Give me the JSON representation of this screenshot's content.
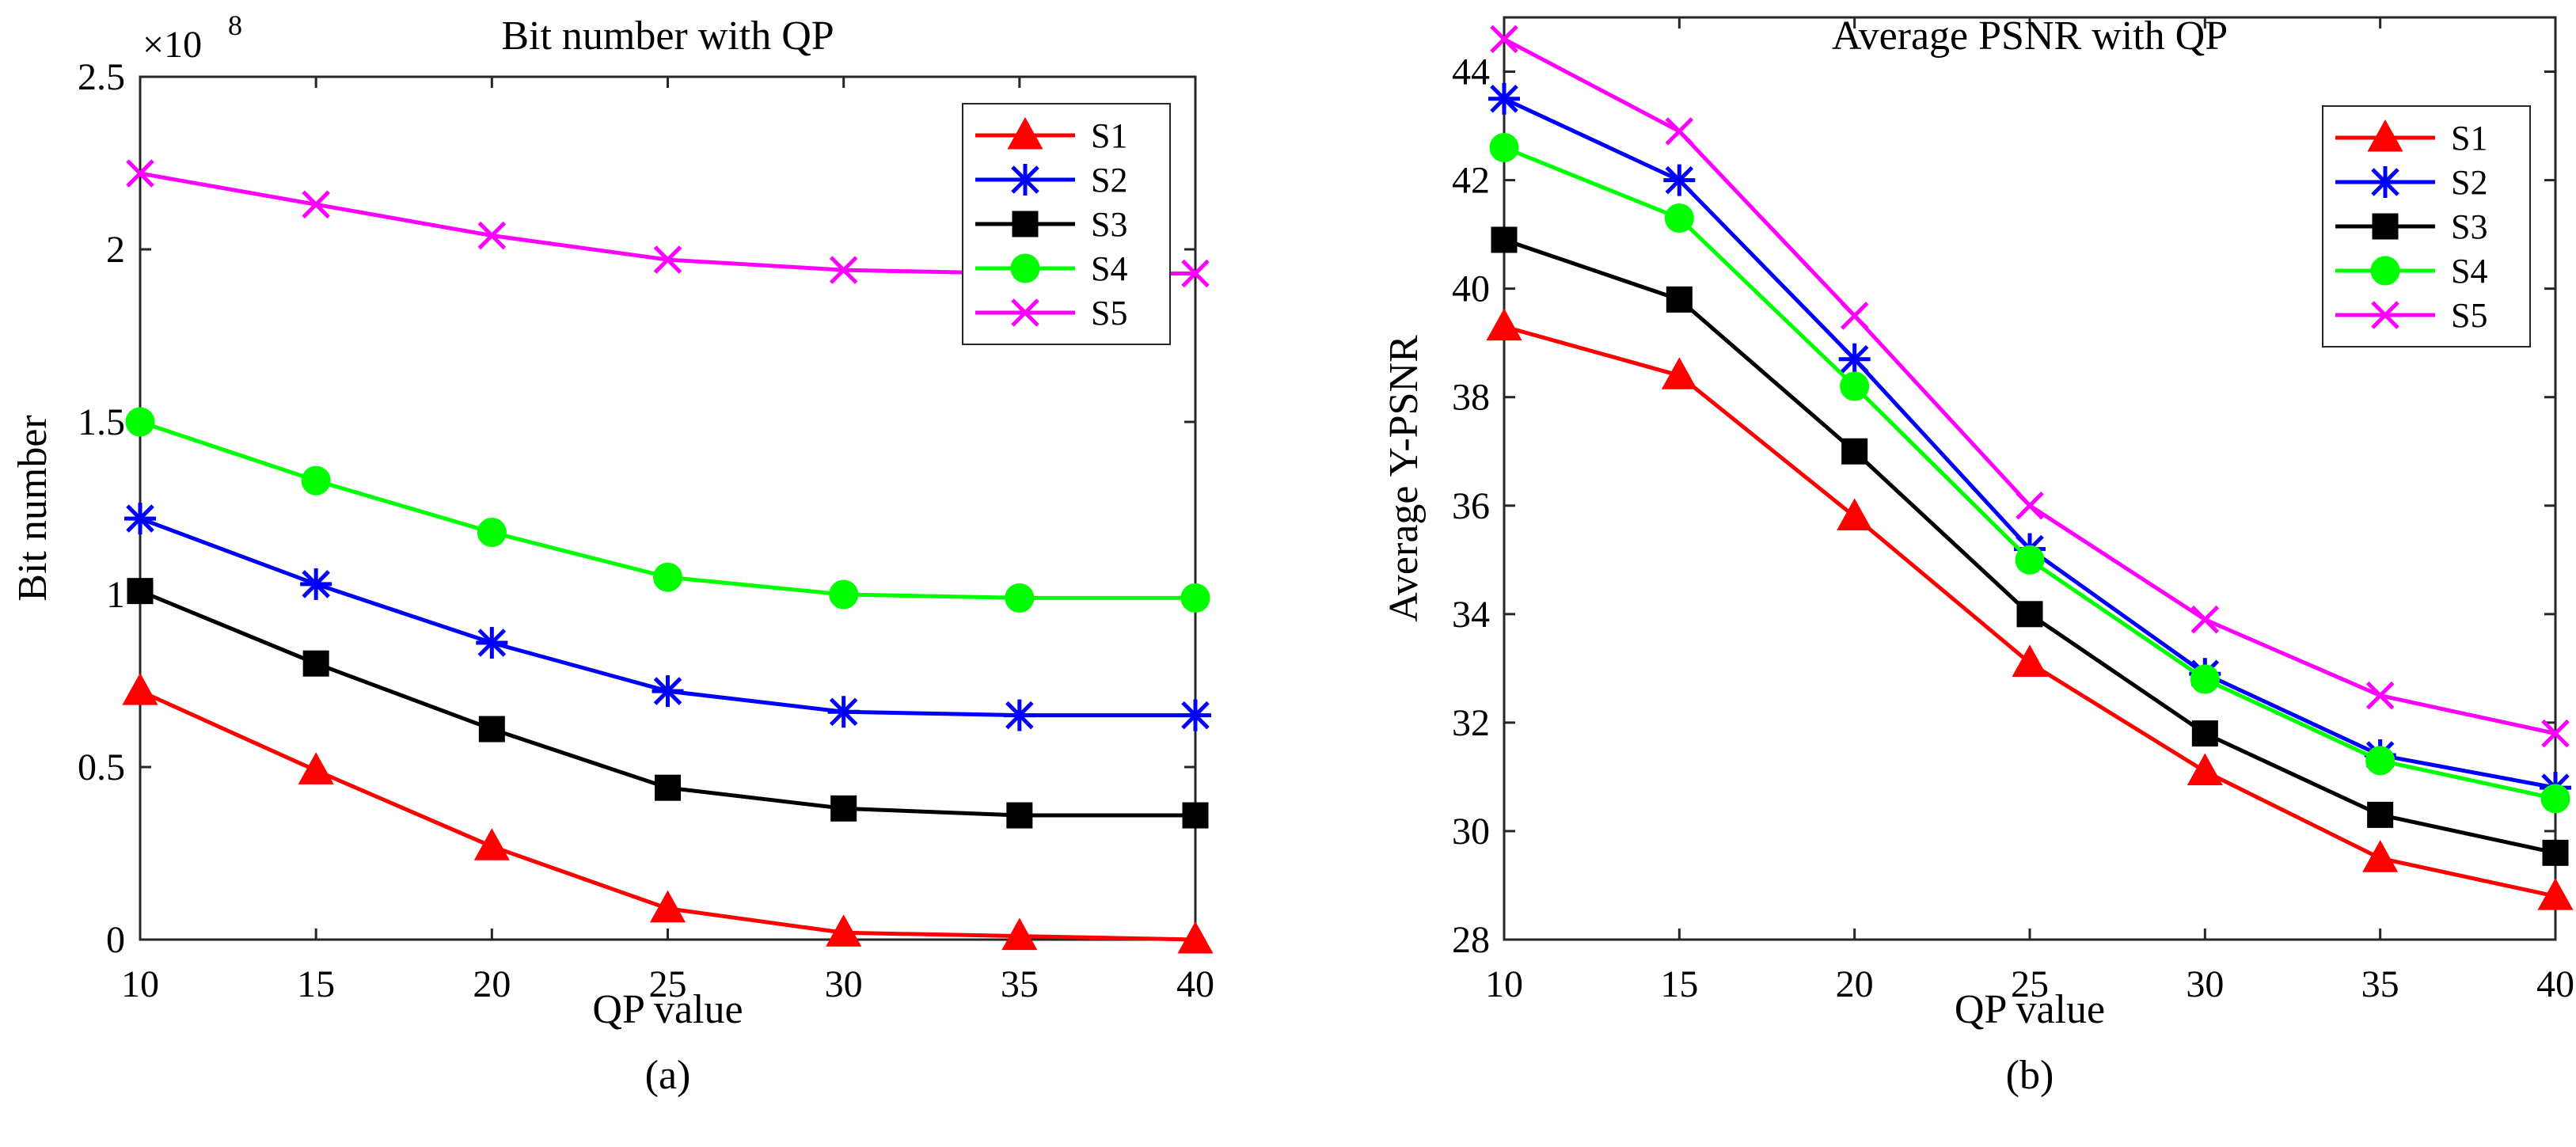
{
  "chart_data": [
    {
      "type": "line",
      "title": "Bit number with QP",
      "xlabel": "QP value",
      "ylabel": "Bit number",
      "caption": "(a)",
      "y_exponent_label": "×10",
      "y_exponent_power": "8",
      "x": [
        10,
        15,
        20,
        25,
        30,
        35,
        40
      ],
      "xlim": [
        10,
        40
      ],
      "ylim": [
        0,
        2.5
      ],
      "xticks": [
        "10",
        "15",
        "20",
        "25",
        "30",
        "35",
        "40"
      ],
      "yticks": [
        "0",
        "0.5",
        "1",
        "1.5",
        "2",
        "2.5"
      ],
      "yticks_values": [
        0,
        0.5,
        1,
        1.5,
        2,
        2.5
      ],
      "grid": false,
      "legend_position": "top-right",
      "series": [
        {
          "name": "S1",
          "color": "#ff0000",
          "marker": "triangle",
          "values": [
            0.72,
            0.49,
            0.27,
            0.09,
            0.02,
            0.01,
            0.0
          ]
        },
        {
          "name": "S2",
          "color": "#0000ff",
          "marker": "asterisk",
          "values": [
            1.22,
            1.03,
            0.86,
            0.72,
            0.66,
            0.65,
            0.65
          ]
        },
        {
          "name": "S3",
          "color": "#000000",
          "marker": "square",
          "values": [
            1.01,
            0.8,
            0.61,
            0.44,
            0.38,
            0.36,
            0.36
          ]
        },
        {
          "name": "S4",
          "color": "#00ff00",
          "marker": "circle",
          "values": [
            1.5,
            1.33,
            1.18,
            1.05,
            1.0,
            0.99,
            0.99
          ]
        },
        {
          "name": "S5",
          "color": "#ff00ff",
          "marker": "x",
          "values": [
            2.22,
            2.13,
            2.04,
            1.97,
            1.94,
            1.93,
            1.93
          ]
        }
      ]
    },
    {
      "type": "line",
      "title": "Average PSNR with QP",
      "xlabel": "QP value",
      "ylabel": "Average Y-PSNR",
      "caption": "(b)",
      "x": [
        10,
        15,
        20,
        25,
        30,
        35,
        40
      ],
      "xlim": [
        10,
        40
      ],
      "ylim": [
        28,
        45
      ],
      "xticks": [
        "10",
        "15",
        "20",
        "25",
        "30",
        "35",
        "40"
      ],
      "yticks": [
        "28",
        "30",
        "32",
        "34",
        "36",
        "38",
        "40",
        "42",
        "44"
      ],
      "yticks_values": [
        28,
        30,
        32,
        34,
        36,
        38,
        40,
        42,
        44
      ],
      "grid": false,
      "legend_position": "top-right",
      "series": [
        {
          "name": "S1",
          "color": "#ff0000",
          "marker": "triangle",
          "values": [
            39.3,
            38.4,
            35.8,
            33.1,
            31.1,
            29.5,
            28.8
          ]
        },
        {
          "name": "S2",
          "color": "#0000ff",
          "marker": "asterisk",
          "values": [
            43.5,
            42.0,
            38.7,
            35.2,
            32.9,
            31.4,
            30.8
          ]
        },
        {
          "name": "S3",
          "color": "#000000",
          "marker": "square",
          "values": [
            40.9,
            39.8,
            37.0,
            34.0,
            31.8,
            30.3,
            29.6
          ]
        },
        {
          "name": "S4",
          "color": "#00ff00",
          "marker": "circle",
          "values": [
            42.6,
            41.3,
            38.2,
            35.0,
            32.8,
            31.3,
            30.6
          ]
        },
        {
          "name": "S5",
          "color": "#ff00ff",
          "marker": "x",
          "values": [
            44.6,
            42.9,
            39.5,
            36.0,
            33.9,
            32.5,
            31.8
          ]
        }
      ]
    }
  ]
}
